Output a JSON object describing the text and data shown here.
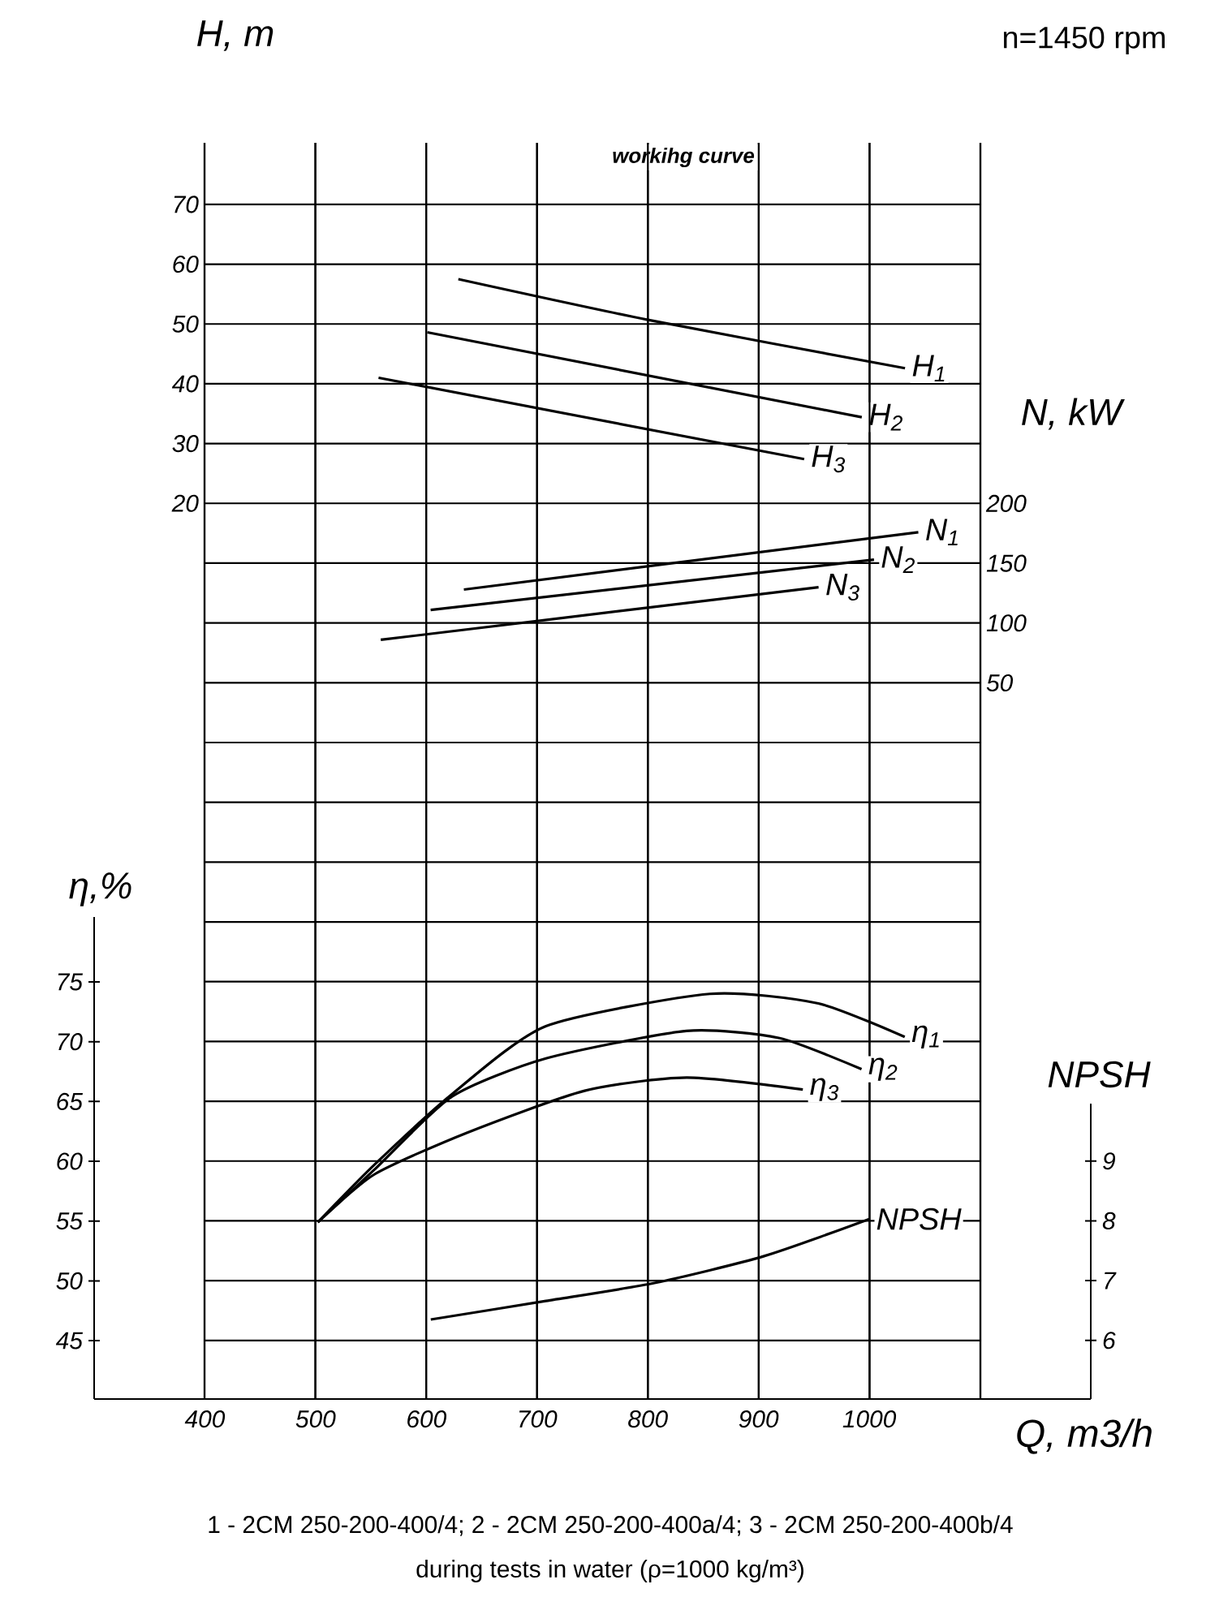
{
  "chart_data": [
    {
      "type": "line",
      "ylabel": "H, m",
      "annotations": [
        "workihg curve",
        "n=1450 rpm",
        "1 - 2CM 250-200-400/4;  2 - 2CM 250-200-400a/4;  3 - 2CM 250-200-400b/4",
        "during tests in water (ρ=1000 kg/m³)"
      ],
      "xlim": [
        400,
        1100
      ],
      "xticks": [
        400,
        500,
        600,
        700,
        800,
        900,
        1000,
        1100
      ],
      "ylim": [
        -129.8,
        80.3
      ],
      "yticks": [
        20,
        30,
        40,
        50,
        60,
        70,
        {
          "value": 10,
          "label": null
        },
        {
          "value": 0,
          "label": null
        },
        {
          "value": -10,
          "label": null
        },
        {
          "value": -20,
          "label": null
        },
        {
          "value": -30,
          "label": null
        },
        {
          "value": -40,
          "label": null
        },
        {
          "value": -50,
          "label": null
        },
        {
          "value": -60,
          "label": null
        },
        {
          "value": -70,
          "label": null
        },
        {
          "value": -80,
          "label": null
        },
        {
          "value": -90,
          "label": null
        },
        {
          "value": -100,
          "label": null
        },
        {
          "value": -110,
          "label": null
        },
        {
          "value": -120,
          "label": null
        }
      ],
      "grid": true,
      "tick_labels": "y",
      "series": [
        {
          "name": "H$_{1}$",
          "color": "#000000",
          "x": [
            629,
            800,
            1032
          ],
          "values": [
            57.5,
            50.7,
            42.6
          ]
        },
        {
          "name": "H$_{2}$",
          "color": "#000000",
          "x": [
            601,
            993
          ],
          "values": [
            48.6,
            34.4
          ]
        },
        {
          "name": "H$_{3}$",
          "color": "#000000",
          "x": [
            557,
            941
          ],
          "values": [
            41.0,
            27.4
          ]
        }
      ]
    },
    {
      "type": "line",
      "ylabel": "N, kW",
      "xlim": [
        400,
        1100
      ],
      "xticks": [
        400,
        500,
        600,
        700,
        800,
        900,
        1000,
        1100
      ],
      "ylim": [
        -548.9,
        501.6
      ],
      "yticks": [
        50,
        100,
        150,
        200
      ],
      "grid": "x",
      "tick_labels": "y",
      "series": [
        {
          "name": "N$_{1}$",
          "color": "#000000",
          "x": [
            634,
            1044
          ],
          "values": [
            128,
            176
          ]
        },
        {
          "name": "N$_{2}$",
          "color": "#000000",
          "x": [
            604,
            1004
          ],
          "values": [
            111,
            153
          ]
        },
        {
          "name": "N$_{3}$",
          "color": "#000000",
          "x": [
            559,
            954
          ],
          "values": [
            86,
            130
          ]
        }
      ]
    },
    {
      "type": "line",
      "ylabel": "η,%",
      "xlabel": "Q, m3/h",
      "xlim": [
        300,
        1200
      ],
      "xticks": [
        400,
        500,
        600,
        700,
        800,
        900,
        1000
      ],
      "ylim": [
        40.12,
        80.43
      ],
      "yticks": [
        45,
        50,
        55,
        60,
        65,
        70,
        75
      ],
      "series": [
        {
          "name": "η$_{1}$",
          "color": "#000000",
          "x": [
            502,
            553,
            623,
            708,
            856,
            954,
            1032
          ],
          "values": [
            54.9,
            59.7,
            65.6,
            71.3,
            74.0,
            73.2,
            70.4
          ]
        },
        {
          "name": "η$_{2}$",
          "color": "#000000",
          "x": [
            502,
            553,
            623,
            708,
            835,
            919,
            993
          ],
          "values": [
            54.9,
            59.3,
            65.4,
            68.6,
            70.9,
            70.3,
            67.7
          ]
        },
        {
          "name": "η$_{3}$",
          "color": "#000000",
          "x": [
            502,
            553,
            637,
            743,
            835,
            940
          ],
          "values": [
            54.9,
            58.9,
            62.4,
            65.9,
            67.0,
            66.0
          ]
        }
      ]
    },
    {
      "type": "line",
      "ylabel": "NPSH",
      "xlim": [
        300,
        1200
      ],
      "xticks": [
        400,
        500,
        600,
        700,
        800,
        900,
        1000
      ],
      "ylim": [
        5.02,
        9.96
      ],
      "yticks": [
        6,
        7,
        8,
        9
      ],
      "tick_labels": "y",
      "series": [
        {
          "name": "NPSH",
          "color": "#000000",
          "x": [
            604,
            708,
            806,
            905,
            1000
          ],
          "values": [
            6.35,
            6.66,
            6.96,
            7.41,
            8.03
          ]
        }
      ]
    }
  ]
}
